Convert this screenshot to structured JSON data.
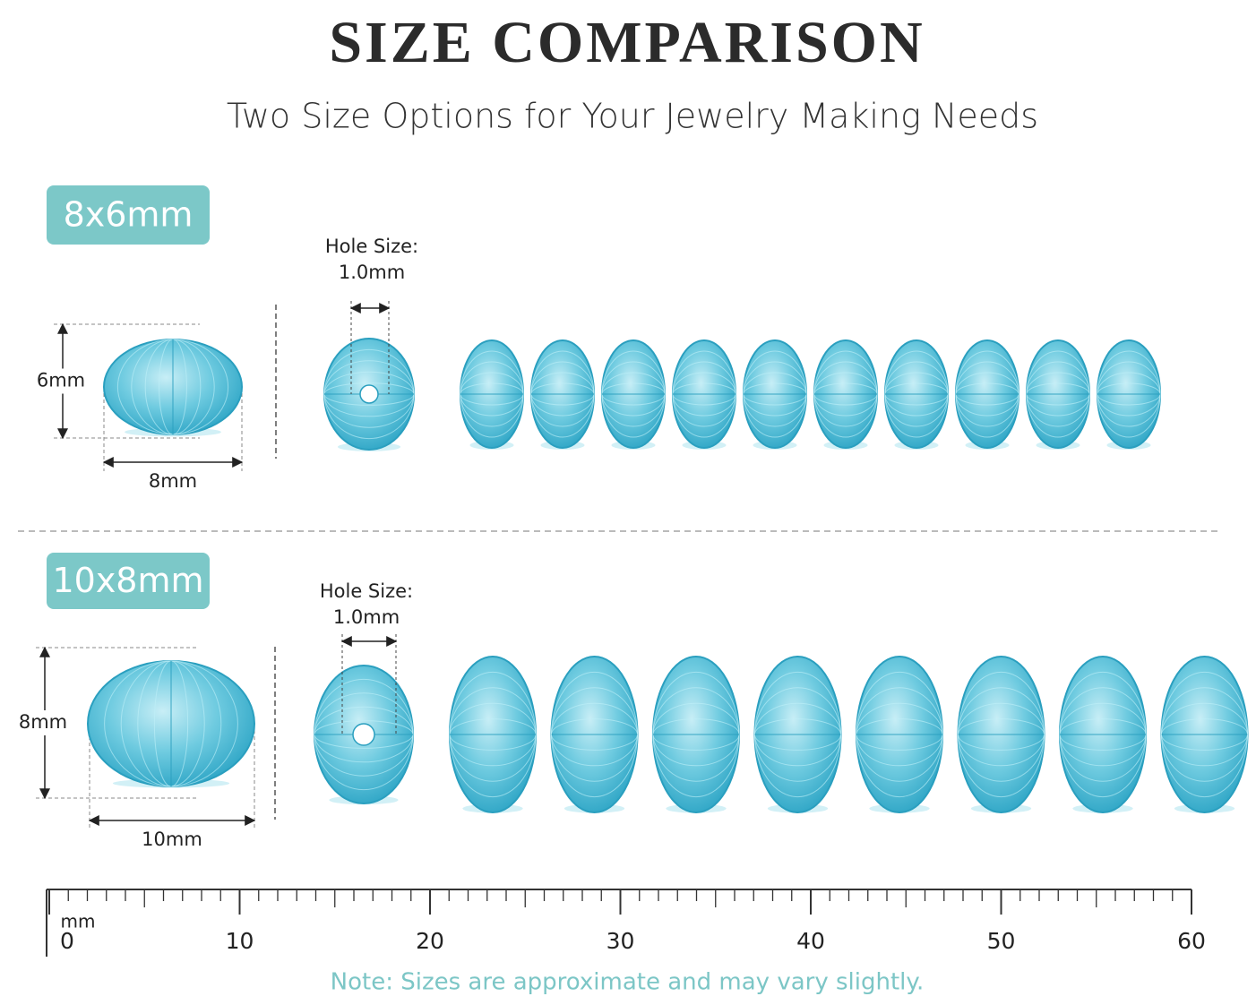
{
  "header": {
    "title": "SIZE COMPARISON",
    "subtitle": "Two Size Options for Your Jewelry Making Needs"
  },
  "sections": [
    {
      "label": "8x6mm",
      "height_label": "6mm",
      "width_label": "8mm",
      "hole_label": "Hole Size:",
      "hole_size": "1.0mm"
    },
    {
      "label": "10x8mm",
      "height_label": "8mm",
      "width_label": "10mm",
      "hole_label": "Hole Size:",
      "hole_size": "1.0mm"
    }
  ],
  "ruler": {
    "unit": "mm",
    "lim": [
      0,
      60
    ],
    "ticks": [
      0,
      10,
      20,
      30,
      40,
      50,
      60
    ]
  },
  "note": "Note: Sizes are approximate and may vary slightly."
}
